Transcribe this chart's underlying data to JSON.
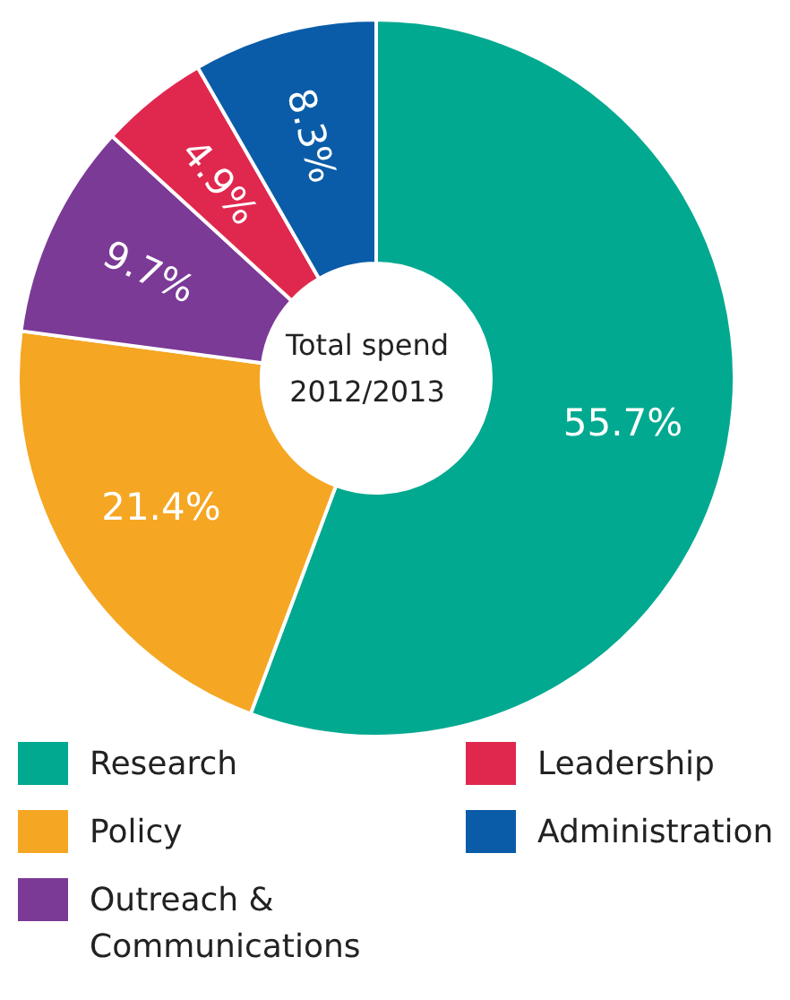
{
  "chart_data": {
    "type": "donut",
    "title": "Total spend",
    "subtitle": "2012/2013",
    "categories": [
      "Research",
      "Policy",
      "Outreach & Communications",
      "Leadership",
      "Administration"
    ],
    "values": [
      55.7,
      21.4,
      9.7,
      4.9,
      8.3
    ],
    "colors": [
      "#00a98f",
      "#f5a623",
      "#7b3a96",
      "#e0284f",
      "#0a5ca8"
    ],
    "value_labels": [
      "55.7%",
      "21.4%",
      "9.7%",
      "4.9%",
      "8.3%"
    ],
    "legend": "bottom"
  }
}
